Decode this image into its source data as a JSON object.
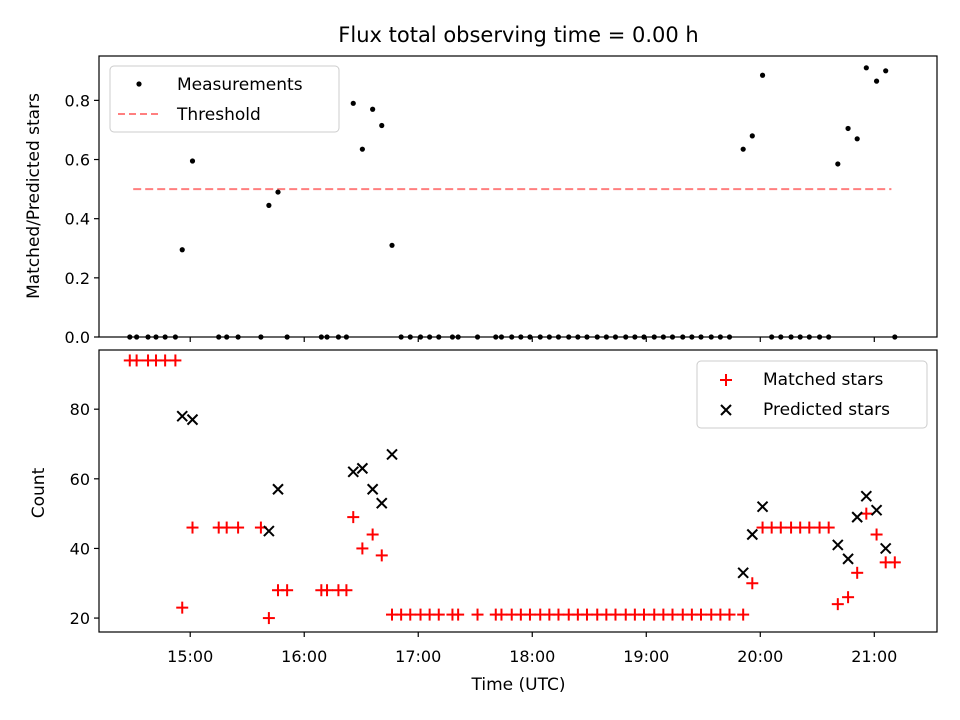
{
  "chart_data": [
    {
      "type": "scatter",
      "title": "Flux total observing time = 0.00 h",
      "xlabel": "",
      "ylabel": "Matched/Predicted stars",
      "xlim": [
        14.2,
        21.55
      ],
      "ylim": [
        0.0,
        0.95
      ],
      "yticks": [
        0.0,
        0.2,
        0.4,
        0.6,
        0.8
      ],
      "ytick_labels": [
        "0.0",
        "0.2",
        "0.4",
        "0.6",
        "0.8"
      ],
      "legend": {
        "position": "top-left",
        "entries": [
          "Measurements",
          "Threshold"
        ]
      },
      "threshold": {
        "name": "Threshold",
        "value": 0.5,
        "x_start": 14.5,
        "x_end": 21.15,
        "color": "#ff7f7f",
        "style": "dashed"
      },
      "series": [
        {
          "name": "Measurements",
          "marker": "dot",
          "color": "#000000",
          "points": [
            [
              14.47,
              0
            ],
            [
              14.53,
              0
            ],
            [
              14.63,
              0
            ],
            [
              14.7,
              0
            ],
            [
              14.78,
              0
            ],
            [
              14.87,
              0
            ],
            [
              14.93,
              0.295
            ],
            [
              15.02,
              0.595
            ],
            [
              15.25,
              0
            ],
            [
              15.32,
              0
            ],
            [
              15.42,
              0
            ],
            [
              15.62,
              0
            ],
            [
              15.69,
              0.445
            ],
            [
              15.77,
              0.49
            ],
            [
              15.85,
              0
            ],
            [
              16.15,
              0
            ],
            [
              16.2,
              0
            ],
            [
              16.3,
              0
            ],
            [
              16.37,
              0
            ],
            [
              16.43,
              0.79
            ],
            [
              16.51,
              0.635
            ],
            [
              16.6,
              0.77
            ],
            [
              16.68,
              0.715
            ],
            [
              16.77,
              0.31
            ],
            [
              16.85,
              0
            ],
            [
              16.93,
              0
            ],
            [
              17.02,
              0
            ],
            [
              17.1,
              0
            ],
            [
              17.18,
              0
            ],
            [
              17.3,
              0
            ],
            [
              17.35,
              0
            ],
            [
              17.52,
              0
            ],
            [
              17.68,
              0
            ],
            [
              17.73,
              0
            ],
            [
              17.82,
              0
            ],
            [
              17.9,
              0
            ],
            [
              17.98,
              0
            ],
            [
              18.07,
              0
            ],
            [
              18.15,
              0
            ],
            [
              18.23,
              0
            ],
            [
              18.32,
              0
            ],
            [
              18.4,
              0
            ],
            [
              18.48,
              0
            ],
            [
              18.57,
              0
            ],
            [
              18.65,
              0
            ],
            [
              18.73,
              0
            ],
            [
              18.82,
              0
            ],
            [
              18.9,
              0
            ],
            [
              18.98,
              0
            ],
            [
              19.07,
              0
            ],
            [
              19.15,
              0
            ],
            [
              19.23,
              0
            ],
            [
              19.32,
              0
            ],
            [
              19.4,
              0
            ],
            [
              19.48,
              0
            ],
            [
              19.57,
              0
            ],
            [
              19.65,
              0
            ],
            [
              19.73,
              0
            ],
            [
              19.85,
              0.635
            ],
            [
              19.93,
              0.68
            ],
            [
              20.02,
              0.885
            ],
            [
              20.1,
              0
            ],
            [
              20.18,
              0
            ],
            [
              20.27,
              0
            ],
            [
              20.35,
              0
            ],
            [
              20.43,
              0
            ],
            [
              20.52,
              0
            ],
            [
              20.6,
              0
            ],
            [
              20.68,
              0.585
            ],
            [
              20.77,
              0.705
            ],
            [
              20.85,
              0.67
            ],
            [
              20.93,
              0.91
            ],
            [
              21.02,
              0.865
            ],
            [
              21.1,
              0.9
            ],
            [
              21.18,
              0
            ]
          ]
        }
      ]
    },
    {
      "type": "scatter",
      "title": "",
      "xlabel": "Time (UTC)",
      "ylabel": "Count",
      "xlim": [
        14.2,
        21.55
      ],
      "ylim": [
        16,
        97
      ],
      "xticks": [
        15,
        16,
        17,
        18,
        19,
        20,
        21
      ],
      "xtick_labels": [
        "15:00",
        "16:00",
        "17:00",
        "18:00",
        "19:00",
        "20:00",
        "21:00"
      ],
      "yticks": [
        20,
        40,
        60,
        80
      ],
      "ytick_labels": [
        "20",
        "40",
        "60",
        "80"
      ],
      "legend": {
        "position": "top-right",
        "entries": [
          "Matched stars",
          "Predicted stars"
        ]
      },
      "series": [
        {
          "name": "Matched stars",
          "marker": "plus",
          "color": "#ff0000",
          "points": [
            [
              14.47,
              94
            ],
            [
              14.53,
              94
            ],
            [
              14.63,
              94
            ],
            [
              14.7,
              94
            ],
            [
              14.78,
              94
            ],
            [
              14.87,
              94
            ],
            [
              14.93,
              23
            ],
            [
              15.02,
              46
            ],
            [
              15.25,
              46
            ],
            [
              15.32,
              46
            ],
            [
              15.42,
              46
            ],
            [
              15.62,
              46
            ],
            [
              15.69,
              20
            ],
            [
              15.77,
              28
            ],
            [
              15.85,
              28
            ],
            [
              16.15,
              28
            ],
            [
              16.2,
              28
            ],
            [
              16.3,
              28
            ],
            [
              16.37,
              28
            ],
            [
              16.43,
              49
            ],
            [
              16.51,
              40
            ],
            [
              16.6,
              44
            ],
            [
              16.68,
              38
            ],
            [
              16.77,
              21
            ],
            [
              16.85,
              21
            ],
            [
              16.93,
              21
            ],
            [
              17.02,
              21
            ],
            [
              17.1,
              21
            ],
            [
              17.18,
              21
            ],
            [
              17.3,
              21
            ],
            [
              17.35,
              21
            ],
            [
              17.52,
              21
            ],
            [
              17.68,
              21
            ],
            [
              17.73,
              21
            ],
            [
              17.82,
              21
            ],
            [
              17.9,
              21
            ],
            [
              17.98,
              21
            ],
            [
              18.07,
              21
            ],
            [
              18.15,
              21
            ],
            [
              18.23,
              21
            ],
            [
              18.32,
              21
            ],
            [
              18.4,
              21
            ],
            [
              18.48,
              21
            ],
            [
              18.57,
              21
            ],
            [
              18.65,
              21
            ],
            [
              18.73,
              21
            ],
            [
              18.82,
              21
            ],
            [
              18.9,
              21
            ],
            [
              18.98,
              21
            ],
            [
              19.07,
              21
            ],
            [
              19.15,
              21
            ],
            [
              19.23,
              21
            ],
            [
              19.32,
              21
            ],
            [
              19.4,
              21
            ],
            [
              19.48,
              21
            ],
            [
              19.57,
              21
            ],
            [
              19.65,
              21
            ],
            [
              19.73,
              21
            ],
            [
              19.85,
              21
            ],
            [
              19.93,
              30
            ],
            [
              20.02,
              46
            ],
            [
              20.1,
              46
            ],
            [
              20.18,
              46
            ],
            [
              20.27,
              46
            ],
            [
              20.35,
              46
            ],
            [
              20.43,
              46
            ],
            [
              20.52,
              46
            ],
            [
              20.6,
              46
            ],
            [
              20.68,
              24
            ],
            [
              20.77,
              26
            ],
            [
              20.85,
              33
            ],
            [
              20.93,
              50
            ],
            [
              21.02,
              44
            ],
            [
              21.1,
              36
            ],
            [
              21.18,
              36
            ]
          ]
        },
        {
          "name": "Predicted stars",
          "marker": "x",
          "color": "#000000",
          "points": [
            [
              14.93,
              78
            ],
            [
              15.02,
              77
            ],
            [
              15.69,
              45
            ],
            [
              15.77,
              57
            ],
            [
              16.43,
              62
            ],
            [
              16.51,
              63
            ],
            [
              16.6,
              57
            ],
            [
              16.68,
              53
            ],
            [
              16.77,
              67
            ],
            [
              19.85,
              33
            ],
            [
              19.93,
              44
            ],
            [
              20.02,
              52
            ],
            [
              20.68,
              41
            ],
            [
              20.77,
              37
            ],
            [
              20.85,
              49
            ],
            [
              20.93,
              55
            ],
            [
              21.02,
              51
            ],
            [
              21.1,
              40
            ]
          ]
        }
      ]
    }
  ]
}
